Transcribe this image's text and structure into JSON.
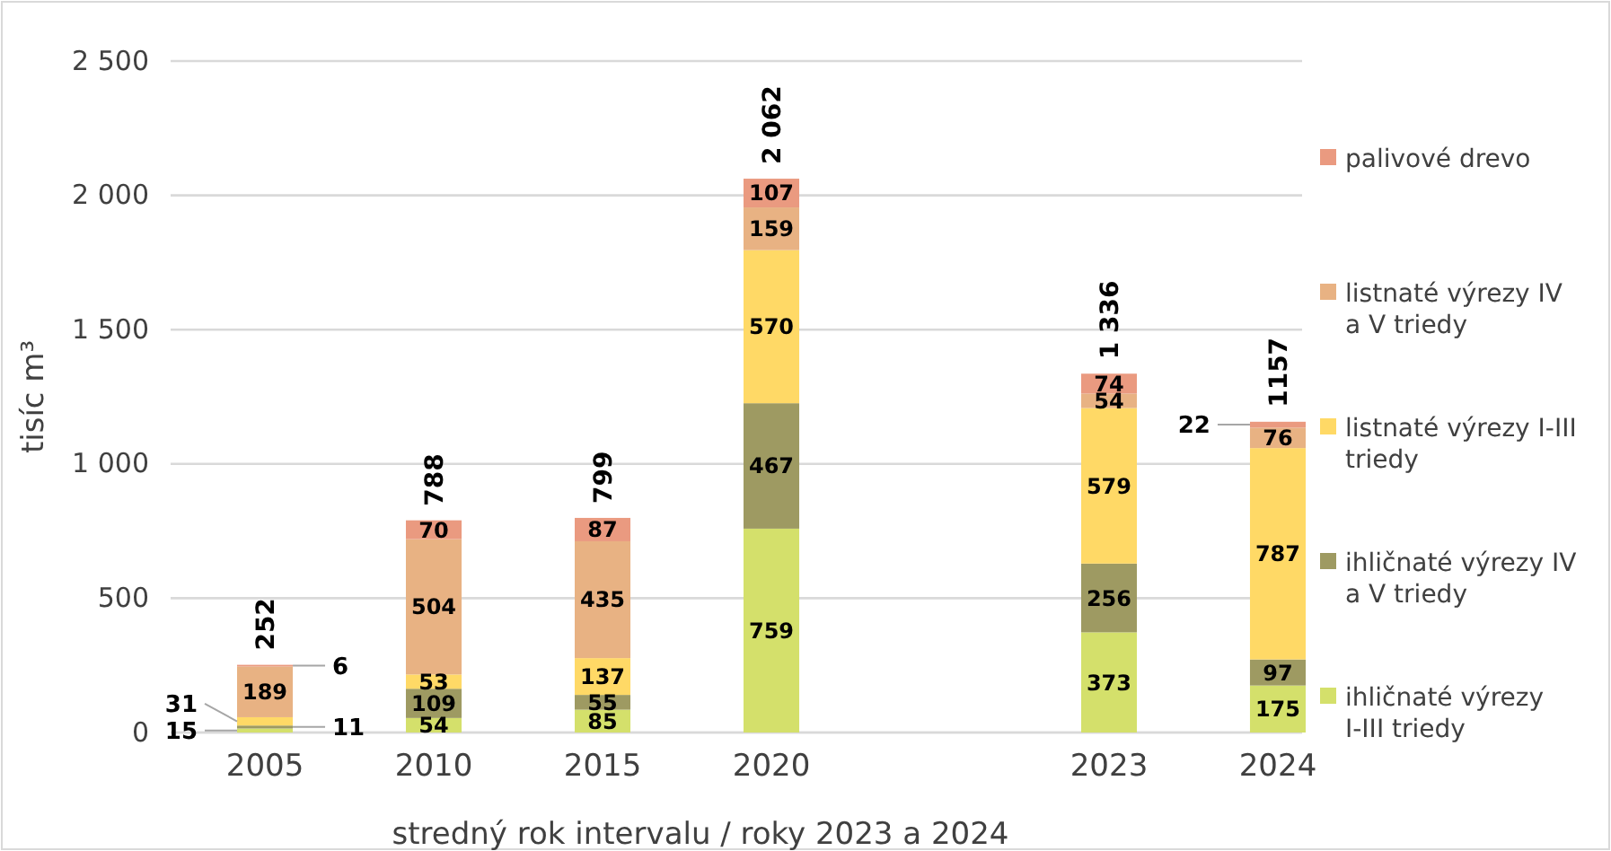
{
  "chart_data": {
    "type": "bar",
    "stacked": true,
    "xlabel": "stredný rok intervalu / roky 2023 a 2024",
    "ylabel": "tisíc m³",
    "categories": [
      "2005",
      "2010",
      "2015",
      "2020",
      null,
      "2023",
      "2024"
    ],
    "series": [
      {
        "name": "ihličnaté výrezy I-III triedy",
        "color": "#d4e06b",
        "values": [
          15,
          54,
          85,
          759,
          null,
          373,
          175
        ]
      },
      {
        "name": "ihličnaté výrezy IV a V triedy",
        "color": "#9e9a62",
        "values": [
          11,
          109,
          55,
          467,
          null,
          256,
          97
        ]
      },
      {
        "name": "listnaté výrezy I-III triedy",
        "color": "#ffd966",
        "values": [
          31,
          53,
          137,
          570,
          null,
          579,
          787
        ]
      },
      {
        "name": "listnaté výrezy IV a V triedy",
        "color": "#e8b283",
        "values": [
          189,
          504,
          435,
          159,
          null,
          54,
          76
        ]
      },
      {
        "name": "palivové drevo",
        "color": "#ea9a80",
        "values": [
          6,
          70,
          87,
          107,
          null,
          74,
          22
        ]
      }
    ],
    "totals": [
      "252",
      "788",
      "799",
      "2 062",
      null,
      "1 336",
      "1157"
    ],
    "data_labels": true,
    "ylim": [
      0,
      2500
    ],
    "yticks": [
      0,
      500,
      {
        "value": 1000,
        "label": "1 000"
      },
      {
        "value": 1500,
        "label": "1 500"
      },
      {
        "value": 2000,
        "label": "2 000"
      },
      {
        "value": 2500,
        "label": "2 500"
      }
    ],
    "grid": "y",
    "legend": "right"
  }
}
